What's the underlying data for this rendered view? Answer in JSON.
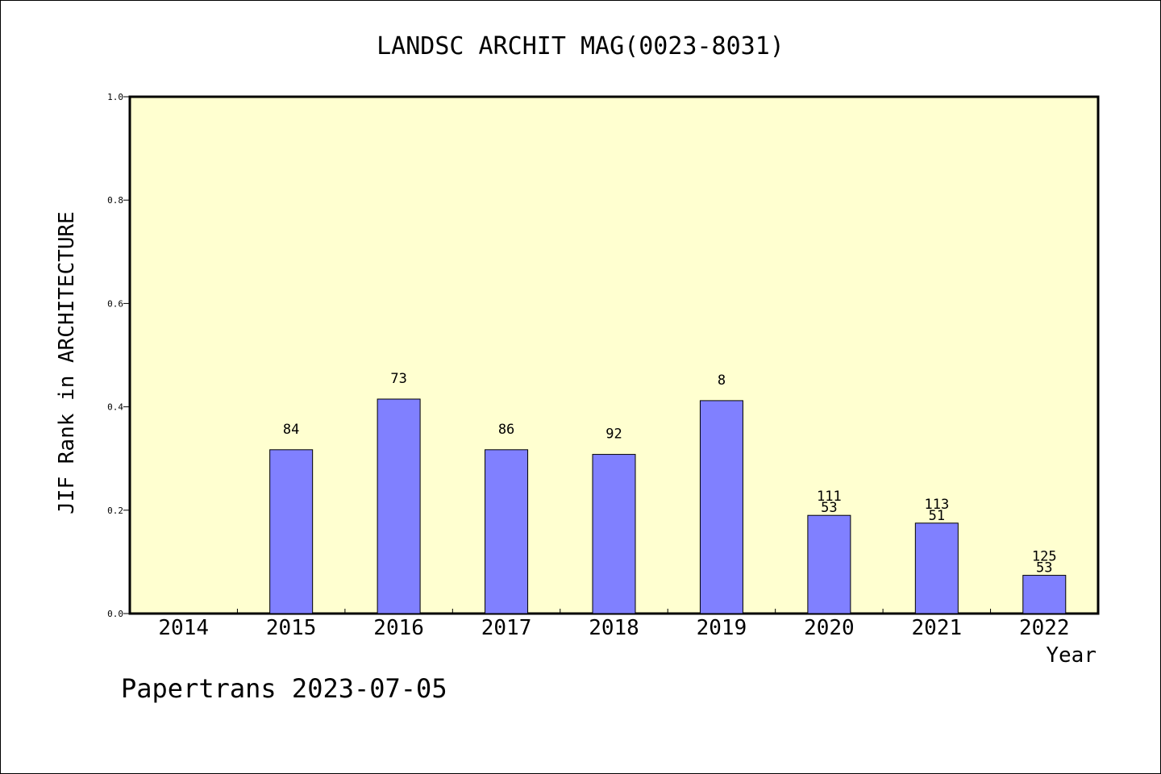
{
  "chart_data": {
    "type": "bar",
    "title": "LANDSC ARCHIT MAG(0023-8031)",
    "xlabel": "Year",
    "ylabel": "JIF Rank in ARCHITECTURE",
    "ylim": [
      0,
      1.0
    ],
    "y_ticks": [
      "0.0",
      "0.2",
      "0.4",
      "0.6",
      "0.8",
      "1.0"
    ],
    "categories": [
      "2014",
      "2015",
      "2016",
      "2017",
      "2018",
      "2019",
      "2020",
      "2021",
      "2022"
    ],
    "values": [
      null,
      0.317,
      0.415,
      0.317,
      0.308,
      0.412,
      0.19,
      0.175,
      0.074
    ],
    "bar_labels": [
      [],
      [
        "84"
      ],
      [
        "73"
      ],
      [
        "86"
      ],
      [
        "92"
      ],
      [
        "8"
      ],
      [
        "111",
        "53"
      ],
      [
        "113",
        "51"
      ],
      [
        "125",
        "53"
      ]
    ],
    "grid": false,
    "colors": {
      "plot_background": "#ffffd0",
      "bar_fill": "#8080ff",
      "bar_stroke": "#000000"
    }
  },
  "footer": {
    "credit": "Papertrans 2023-07-05"
  }
}
